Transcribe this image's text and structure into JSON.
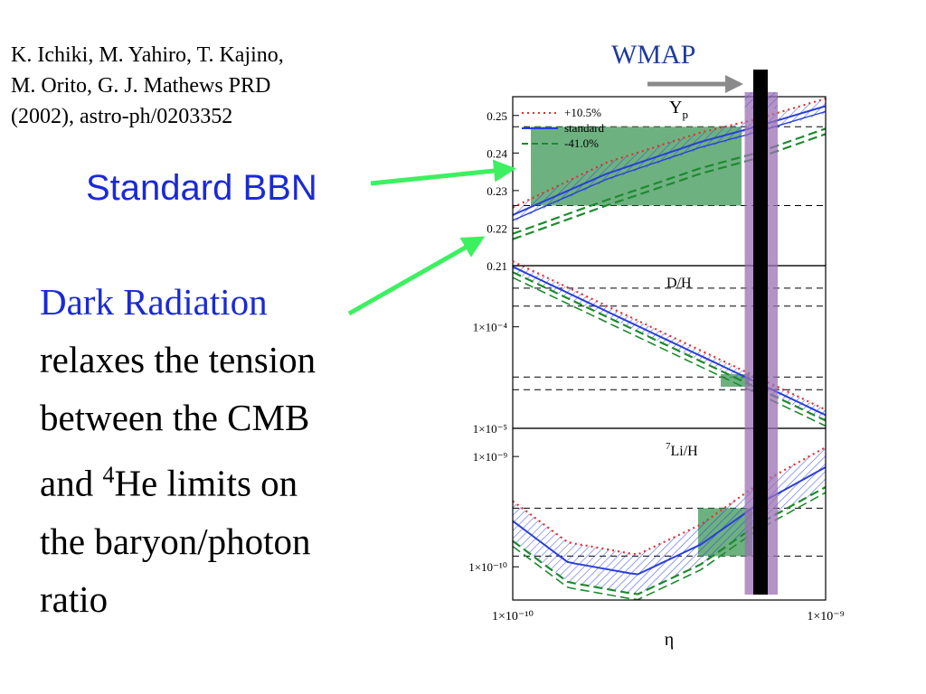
{
  "citation": {
    "line1": "K. Ichiki, M. Yahiro,  T. Kajino,",
    "line2": "M. Orito, G. J. Mathews PRD",
    "line3": "(2002),  astro-ph/0203352"
  },
  "callouts": {
    "standard_bbn": "Standard BBN",
    "dark_radiation": "Dark Radiation",
    "body_line1": "relaxes the tension",
    "body_line2": "between the CMB",
    "body_line3_pre": "and ",
    "body_line3_sup": "4",
    "body_line3_post": "He limits on",
    "body_line4": "the baryon/photon",
    "body_line5": "ratio"
  },
  "wmap_label": "WMAP",
  "colors": {
    "title_blue": "#1a2ad6",
    "arrow_green": "#3df060",
    "wmap_band": "#9b6fb3",
    "obs_box": "#4a9e62",
    "standard": "#2a3fd9",
    "plus": "#e03030",
    "minus": "#1e8a2e"
  },
  "chart_data": {
    "type": "line",
    "xlabel": "η",
    "x_scale": "log",
    "xlim": [
      1e-10,
      1e-09
    ],
    "x_tick_labels": [
      "1×10⁻¹⁰",
      "1×10⁻⁹"
    ],
    "legend": {
      "placement": "top-left",
      "entries": [
        "+10.5%",
        "standard",
        "-41.0%"
      ]
    },
    "panels": [
      {
        "label": "Y",
        "label_sub": "p",
        "ylim": [
          0.21,
          0.255
        ],
        "y_tick_labels": [
          "0.25",
          "0.24",
          "0.23",
          "0.22",
          "0.21"
        ],
        "y_ticks": [
          0.25,
          0.24,
          0.23,
          0.22,
          0.21
        ],
        "obs_limits": [
          0.226,
          0.247
        ],
        "series": [
          {
            "name": "+10.5%",
            "x": [
              1e-10,
              2e-10,
              4e-10,
              6e-10,
              1e-09
            ],
            "y": [
              0.2255,
              0.2375,
              0.2455,
              0.249,
              0.2545
            ]
          },
          {
            "name": "standard",
            "x": [
              1e-10,
              2e-10,
              4e-10,
              6e-10,
              1e-09
            ],
            "y": [
              0.2235,
              0.2345,
              0.243,
              0.247,
              0.2525
            ]
          },
          {
            "name": "-41.0%",
            "x": [
              1e-10,
              2e-10,
              4e-10,
              6e-10,
              1e-09
            ],
            "y": [
              0.2185,
              0.2275,
              0.236,
              0.24,
              0.2465
            ]
          }
        ]
      },
      {
        "label": "D/H",
        "y_scale": "log",
        "ylim": [
          1e-05,
          0.0004
        ],
        "y_tick_labels": [
          "1×10⁻⁴",
          "1×10⁻⁵"
        ],
        "y_ticks": [
          0.0001,
          1e-05
        ],
        "obs_limits": [
          [
            2.4e-05,
            3.2e-05
          ],
          [
            0.00016,
            0.00024
          ]
        ],
        "series": [
          {
            "name": "standard",
            "x": [
              1e-10,
              1e-09
            ],
            "y": [
              0.00039,
              1.35e-05
            ]
          }
        ]
      },
      {
        "label": "Li/H",
        "label_sup": "7",
        "y_scale": "log",
        "ylim": [
          5e-11,
          1.8e-09
        ],
        "y_tick_labels": [
          "1×10⁻⁹",
          "1×10⁻¹⁰"
        ],
        "y_ticks": [
          1e-09,
          1e-10
        ],
        "obs_limits": [
          1.25e-10,
          3.4e-10
        ],
        "series": [
          {
            "name": "standard",
            "x": [
              1e-10,
              1.5e-10,
              2.5e-10,
              4e-10,
              6e-10,
              1e-09
            ],
            "y": [
              2.6e-10,
              1.1e-10,
              8.5e-11,
              1.6e-10,
              3.6e-10,
              8e-10
            ]
          }
        ]
      }
    ],
    "wmap_eta_range": [
      5.7e-10,
      6.8e-10
    ]
  }
}
